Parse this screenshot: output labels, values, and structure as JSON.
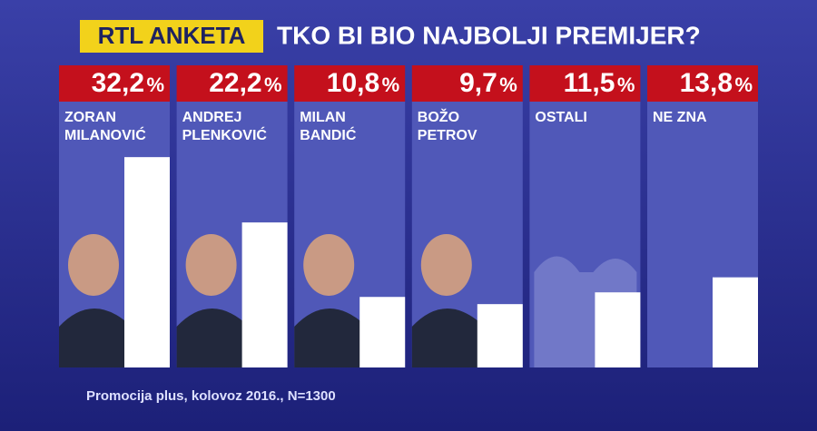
{
  "chart_data": {
    "type": "bar",
    "badge": "RTL ANKETA",
    "title": "TKO BI BIO NAJBOLJI PREMIJER?",
    "categories": [
      [
        "ZORAN",
        "MILANOVIĆ"
      ],
      [
        "ANDREJ",
        "PLENKOVIĆ"
      ],
      [
        "MILAN",
        "BANDIĆ"
      ],
      [
        "BOŽO",
        "PETROV"
      ],
      [
        "OSTALI"
      ],
      [
        "NE ZNA"
      ]
    ],
    "values": [
      32.2,
      22.2,
      10.8,
      9.7,
      11.5,
      13.8
    ],
    "value_labels": [
      "32,2",
      "22,2",
      "10,8",
      "9,7",
      "11,5",
      "13,8"
    ],
    "value_unit": "%",
    "color": "#ffffff",
    "footnote": "Promocija plus, kolovoz 2016., N=1300"
  }
}
